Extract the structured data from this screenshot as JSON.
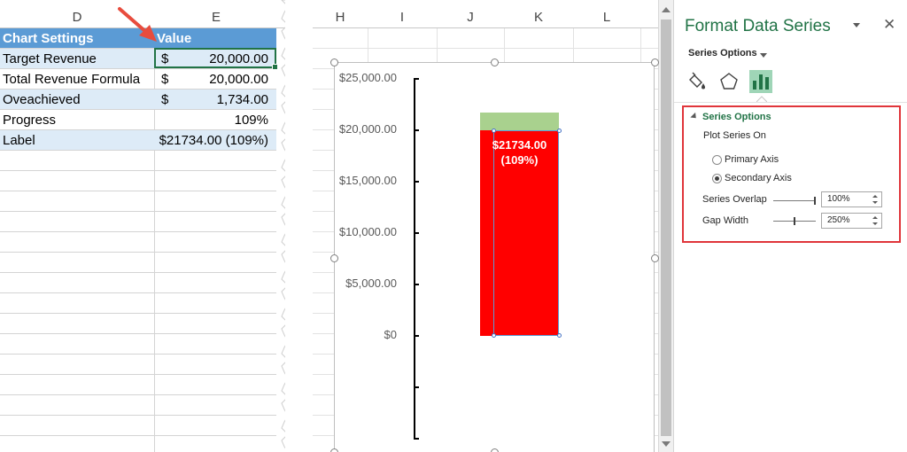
{
  "colors": {
    "header_fill": "#5b9bd5",
    "band_fill": "#ddebf7",
    "bar_main": "#ff0000",
    "bar_over": "#a9d18e",
    "accent_green": "#217346",
    "callout_red": "#e0353a",
    "arrow_red": "#e84c3d"
  },
  "left_sheet": {
    "columns": [
      "D",
      "E"
    ],
    "rows": [
      {
        "label": "Chart Settings",
        "value": "Value",
        "currency": "",
        "style": "header"
      },
      {
        "label": "Target Revenue",
        "value": "20,000.00",
        "currency": "$",
        "style": "band"
      },
      {
        "label": "Total Revenue Formula",
        "value": "20,000.00",
        "currency": "$",
        "style": "plain"
      },
      {
        "label": "Oveachieved",
        "value": "1,734.00",
        "currency": "$",
        "style": "band"
      },
      {
        "label": "Progress",
        "value": "109%",
        "currency": "",
        "style": "plain"
      },
      {
        "label": "Label",
        "value": "$21734.00 (109%)",
        "currency": "",
        "style": "band"
      }
    ]
  },
  "right_sheet": {
    "columns": [
      "H",
      "I",
      "J",
      "K",
      "L"
    ]
  },
  "chart_data": {
    "type": "bar",
    "categories": [
      ""
    ],
    "series": [
      {
        "name": "",
        "values": [
          20000
        ],
        "color": "#ff0000"
      },
      {
        "name": "",
        "values": [
          1734
        ],
        "color": "#a9d18e"
      }
    ],
    "stacked": true,
    "y_ticks": [
      "$25,000.00",
      "$20,000.00",
      "$15,000.00",
      "$10,000.00",
      "$5,000.00",
      "$0"
    ],
    "ylim": [
      0,
      25000
    ],
    "data_label": "$21734.00\n(109%)",
    "title": "",
    "xlabel": "",
    "ylabel": "",
    "grid": false,
    "legend": "none"
  },
  "panel": {
    "title": "Format Data Series",
    "close_glyph": "✕",
    "series_options_dropdown": "Series Options",
    "tab_icons": [
      "fill-line-icon",
      "effects-pentagon-icon",
      "series-options-bars-icon"
    ],
    "section_title": "Series Options",
    "plot_series_on": "Plot Series On",
    "radio_primary": "Primary Axis",
    "radio_secondary": "Secondary Axis",
    "selected_axis": "secondary",
    "overlap_label": "Series Overlap",
    "overlap_value": "100%",
    "overlap_level": 1.0,
    "gap_label": "Gap Width",
    "gap_value": "250%",
    "gap_level": 0.5
  }
}
